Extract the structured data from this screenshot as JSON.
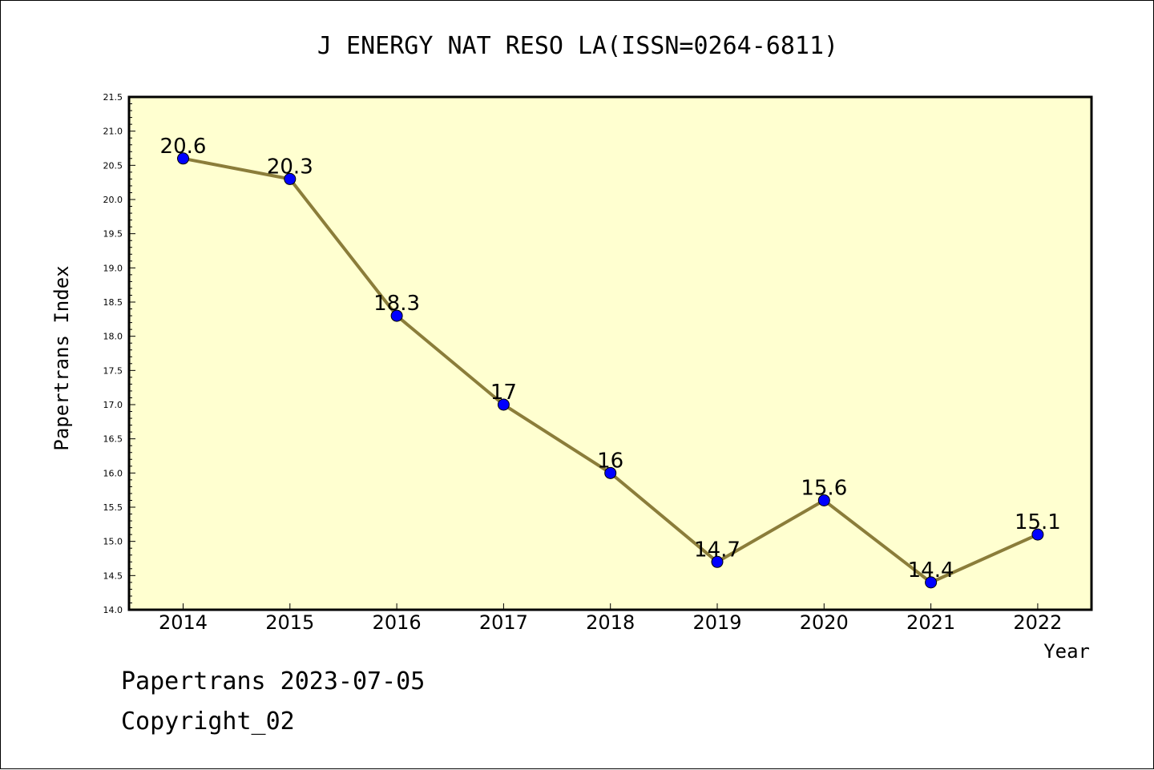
{
  "chart_data": {
    "type": "line",
    "title": "J ENERGY NAT RESO LA(ISSN=0264-6811)",
    "xlabel": "Year",
    "ylabel": "Papertrans Index",
    "categories": [
      "2014",
      "2015",
      "2016",
      "2017",
      "2018",
      "2019",
      "2020",
      "2021",
      "2022"
    ],
    "series": [
      {
        "values": [
          20.6,
          20.3,
          18.3,
          17,
          16,
          14.7,
          15.6,
          14.4,
          15.1
        ],
        "labels": [
          "20.6",
          "20.3",
          "18.3",
          "17",
          "16",
          "14.7",
          "15.6",
          "14.4",
          "15.1"
        ]
      }
    ],
    "ylim": [
      14.0,
      21.5
    ],
    "yticks": [
      "14.0",
      "14.5",
      "15.0",
      "15.5",
      "16.0",
      "16.5",
      "17.0",
      "17.5",
      "18.0",
      "18.5",
      "19.0",
      "19.5",
      "20.0",
      "20.5",
      "21.0",
      "21.5"
    ],
    "grid": false,
    "colors": {
      "plot_background": "#FFFFD0",
      "line": "#8B7D3A",
      "marker": "#0000FF"
    }
  },
  "footer": {
    "line1": "Papertrans 2023-07-05",
    "line2": "Copyright_02"
  }
}
